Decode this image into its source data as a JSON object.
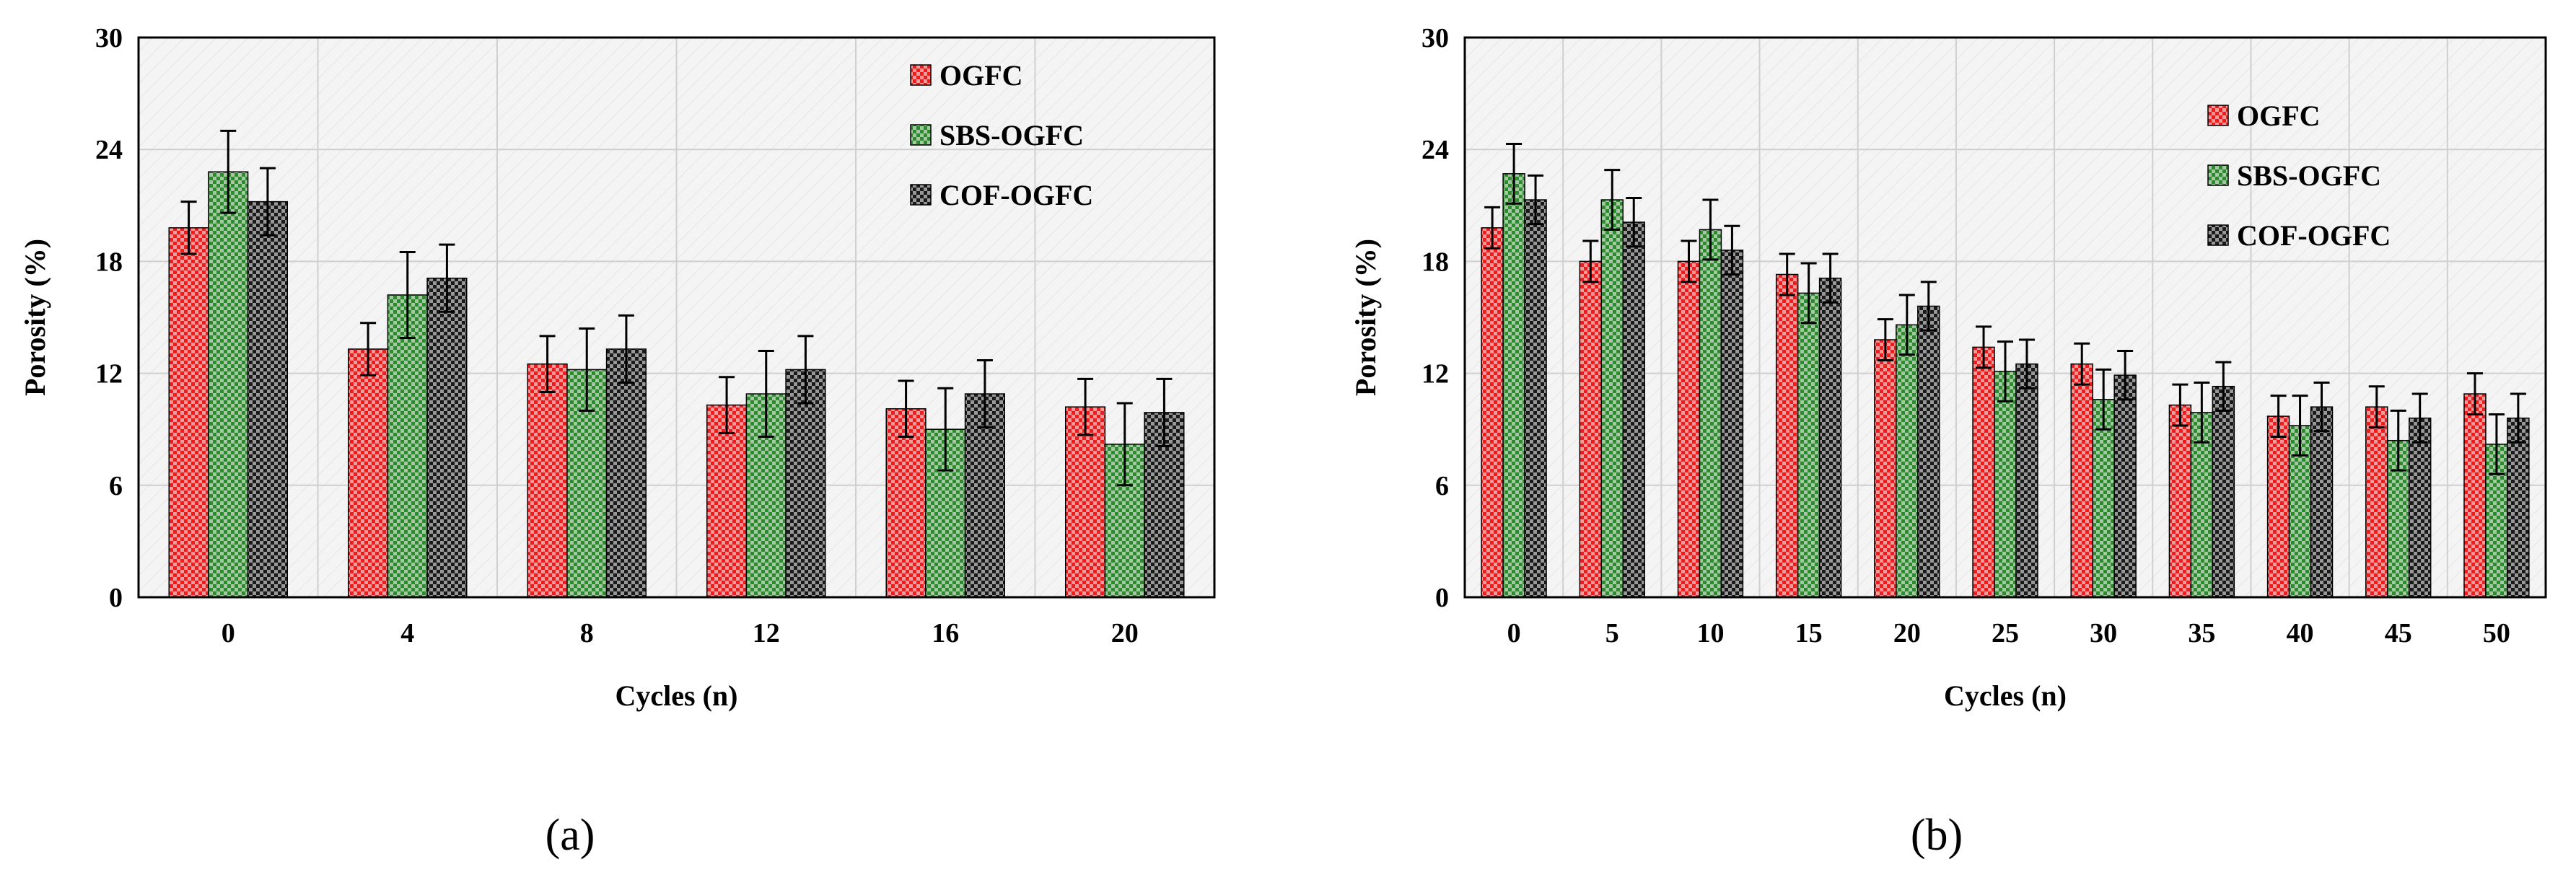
{
  "colors": {
    "OGFC": "#ee1c1c",
    "SBS-OGFC": "#2f8a2f",
    "COF-OGFC": "#1a1a1a",
    "grid": "#cfcfcf",
    "plot_bg": "#f4f4f4"
  },
  "chart_data": [
    {
      "type": "bar",
      "panel_label": "(a)",
      "xlabel": "Cycles (n)",
      "ylabel": "Porosity (%)",
      "ylim": [
        0,
        30
      ],
      "yticks": [
        "0",
        "6",
        "12",
        "18",
        "24",
        "30"
      ],
      "categories": [
        "0",
        "4",
        "8",
        "12",
        "16",
        "20"
      ],
      "legend_position": "top-right",
      "series": [
        {
          "name": "OGFC",
          "values": [
            19.8,
            13.3,
            12.5,
            10.3,
            10.1,
            10.2
          ],
          "errors": [
            1.4,
            1.4,
            1.5,
            1.5,
            1.5,
            1.5
          ]
        },
        {
          "name": "SBS-OGFC",
          "values": [
            22.8,
            16.2,
            12.2,
            10.9,
            9.0,
            8.2
          ],
          "errors": [
            2.2,
            2.3,
            2.2,
            2.3,
            2.2,
            2.2
          ]
        },
        {
          "name": "COF-OGFC",
          "values": [
            21.2,
            17.1,
            13.3,
            12.2,
            10.9,
            9.9
          ],
          "errors": [
            1.8,
            1.8,
            1.8,
            1.8,
            1.8,
            1.8
          ]
        }
      ]
    },
    {
      "type": "bar",
      "panel_label": "(b)",
      "xlabel": "Cycles (n)",
      "ylabel": "Porosity (%)",
      "ylim": [
        0,
        30
      ],
      "yticks": [
        "0",
        "6",
        "12",
        "18",
        "24",
        "30"
      ],
      "categories": [
        "0",
        "5",
        "10",
        "15",
        "20",
        "25",
        "30",
        "35",
        "40",
        "45",
        "50"
      ],
      "legend_position": "top-right",
      "series": [
        {
          "name": "OGFC",
          "values": [
            19.8,
            18.0,
            18.0,
            17.3,
            13.8,
            13.4,
            12.5,
            10.3,
            9.7,
            10.2,
            10.9
          ],
          "errors": [
            1.1,
            1.1,
            1.1,
            1.1,
            1.1,
            1.1,
            1.1,
            1.1,
            1.1,
            1.1,
            1.1
          ]
        },
        {
          "name": "SBS-OGFC",
          "values": [
            22.7,
            21.3,
            19.7,
            16.3,
            14.6,
            12.1,
            10.6,
            9.9,
            9.2,
            8.4,
            8.2
          ],
          "errors": [
            1.6,
            1.6,
            1.6,
            1.6,
            1.6,
            1.6,
            1.6,
            1.6,
            1.6,
            1.6,
            1.6
          ]
        },
        {
          "name": "COF-OGFC",
          "values": [
            21.3,
            20.1,
            18.6,
            17.1,
            15.6,
            12.5,
            11.9,
            11.3,
            10.2,
            9.6,
            9.6
          ],
          "errors": [
            1.3,
            1.3,
            1.3,
            1.3,
            1.3,
            1.3,
            1.3,
            1.3,
            1.3,
            1.3,
            1.3
          ]
        }
      ]
    }
  ]
}
